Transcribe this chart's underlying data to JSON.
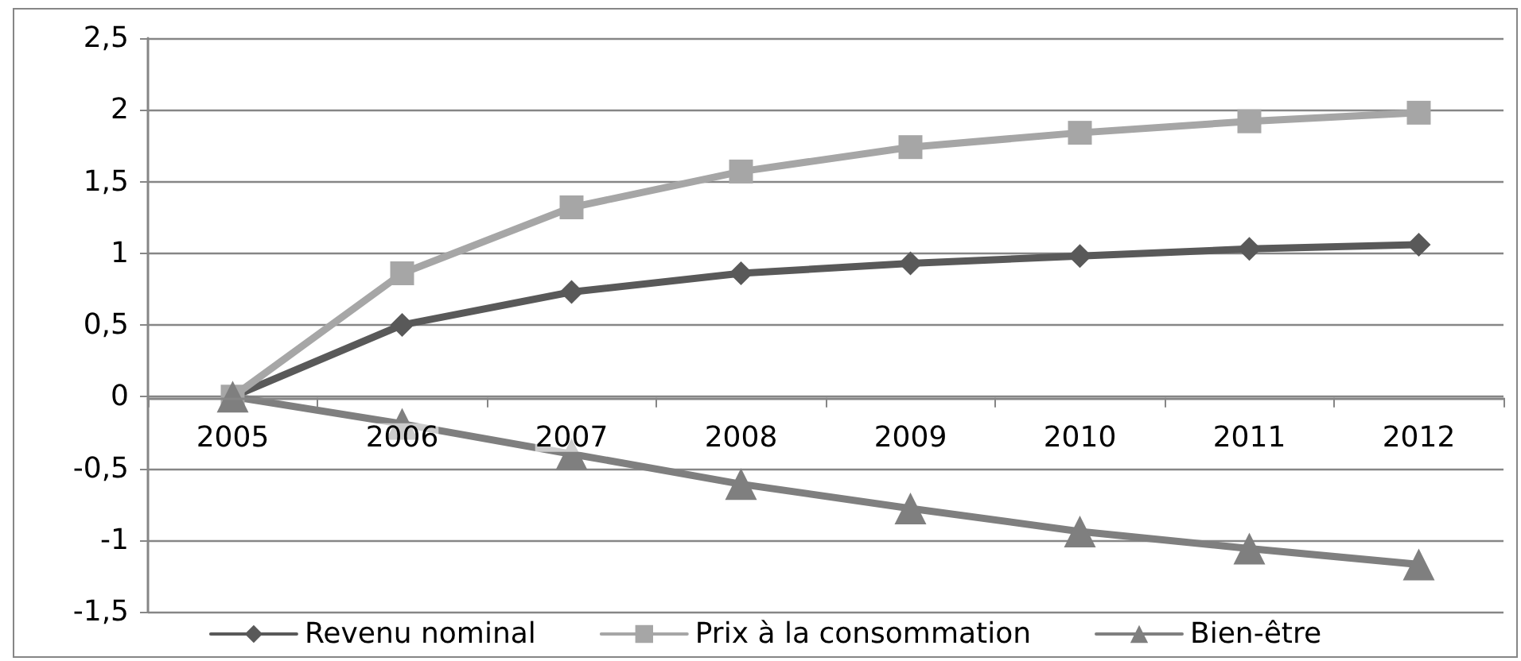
{
  "chart_data": {
    "type": "line",
    "categories": [
      "2005",
      "2006",
      "2007",
      "2008",
      "2009",
      "2010",
      "2011",
      "2012"
    ],
    "series": [
      {
        "name": "Revenu nominal",
        "color": "#595959",
        "marker": "diamond",
        "values": [
          0,
          0.5,
          0.73,
          0.86,
          0.93,
          0.98,
          1.03,
          1.06
        ]
      },
      {
        "name": "Prix à la consommation",
        "color": "#a6a6a6",
        "marker": "square",
        "values": [
          0,
          0.86,
          1.32,
          1.57,
          1.74,
          1.84,
          1.92,
          1.98
        ]
      },
      {
        "name": "Bien-être",
        "color": "#7f7f7f",
        "marker": "triangle",
        "values": [
          0,
          -0.19,
          -0.4,
          -0.61,
          -0.78,
          -0.94,
          -1.06,
          -1.17
        ]
      }
    ],
    "ylim": [
      -1.5,
      2.5
    ],
    "yticks": [
      {
        "value": -1.5,
        "label": "-1,5"
      },
      -1,
      {
        "value": -0.5,
        "label": "-0,5"
      },
      0,
      {
        "value": 0.5,
        "label": "0,5"
      },
      1,
      {
        "value": 1.5,
        "label": "1,5"
      },
      2,
      {
        "value": 2.5,
        "label": "2,5"
      }
    ],
    "grid": "y",
    "legend": "bottom",
    "line_style": "solid"
  }
}
